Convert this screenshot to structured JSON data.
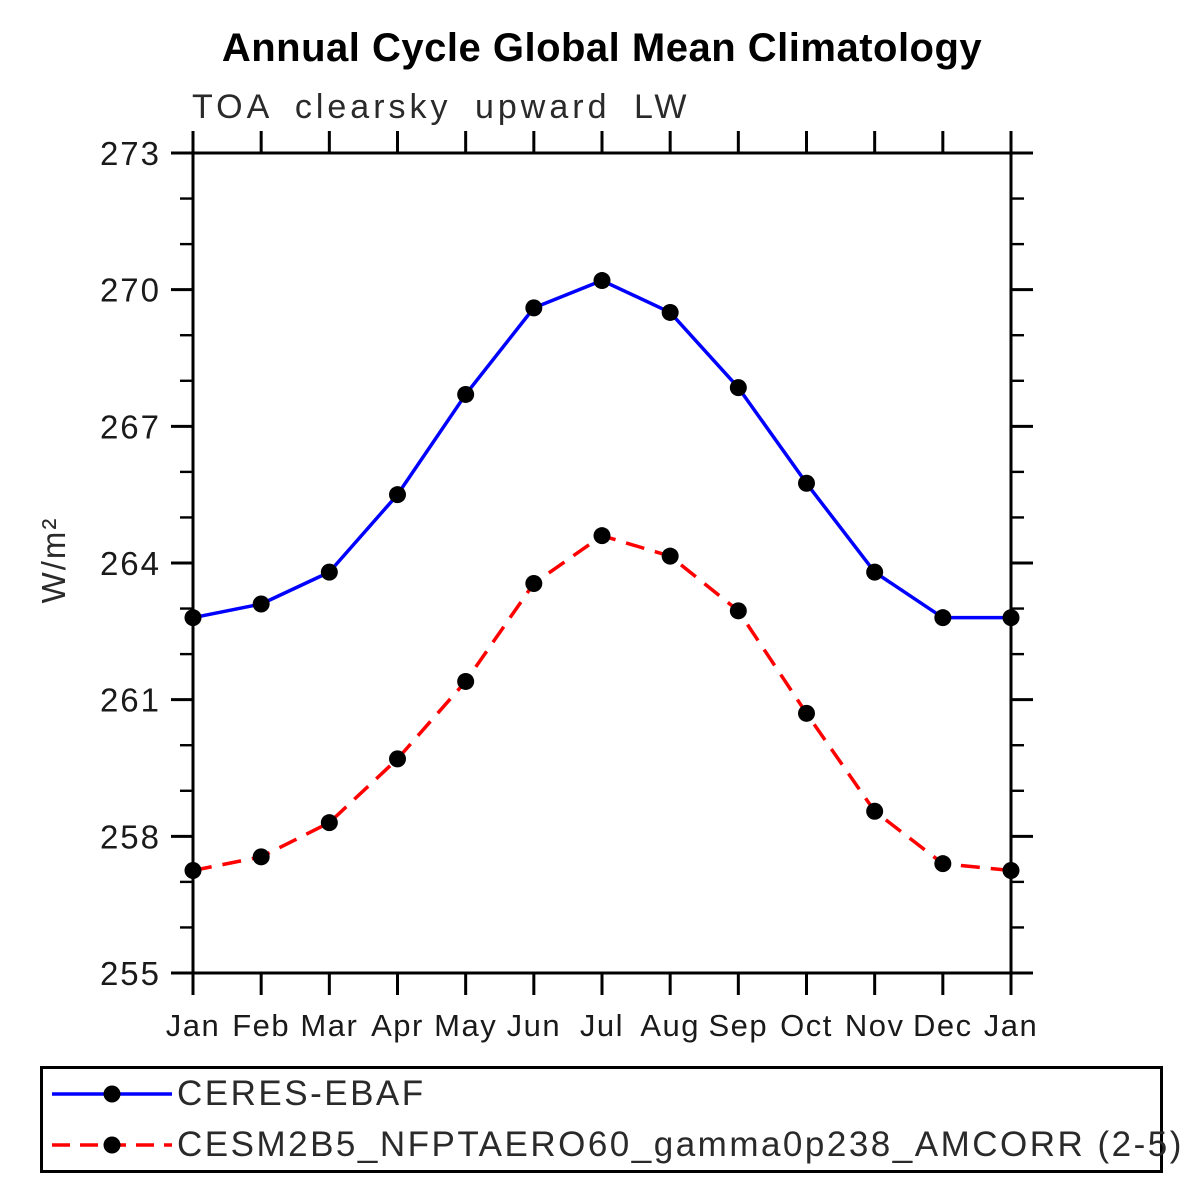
{
  "chart_data": {
    "type": "line",
    "title": "Annual Cycle Global Mean Climatology",
    "subtitle": "TOA clearsky upward LW",
    "xlabel": "",
    "ylabel": "W/m²",
    "categories": [
      "Jan",
      "Feb",
      "Mar",
      "Apr",
      "May",
      "Jun",
      "Jul",
      "Aug",
      "Sep",
      "Oct",
      "Nov",
      "Dec",
      "Jan"
    ],
    "ylim": [
      255,
      273
    ],
    "yticks": [
      255,
      258,
      261,
      264,
      267,
      270,
      273
    ],
    "ytick_minor_step": 1,
    "grid": false,
    "legend_position": "bottom",
    "axis_color": "#000000",
    "series": [
      {
        "name": "CERES-EBAF",
        "color": "#0000ff",
        "style": "solid",
        "marker": "circle",
        "marker_color": "#000000",
        "values": [
          262.8,
          263.1,
          263.8,
          265.5,
          267.7,
          269.6,
          270.2,
          269.5,
          267.85,
          265.75,
          263.8,
          262.8,
          262.8
        ]
      },
      {
        "name": "CESM2B5_NFPTAERO60_gamma0p238_AMCORR (2-5)",
        "color": "#ff0000",
        "style": "dashed",
        "marker": "circle",
        "marker_color": "#000000",
        "values": [
          257.25,
          257.55,
          258.3,
          259.7,
          261.4,
          263.55,
          264.6,
          264.15,
          262.95,
          260.7,
          258.55,
          257.4,
          257.25
        ]
      }
    ]
  }
}
